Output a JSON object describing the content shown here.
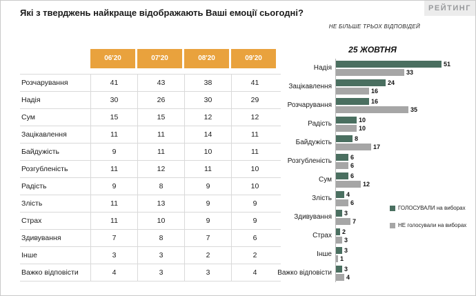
{
  "header": {
    "title": "Які з тверджень найкраще відображають Ваші емоції сьогодні?",
    "note": "НЕ БІЛЬШЕ ТРЬОХ ВІДПОВІДЕЙ",
    "logo": "РЕЙТИНГ"
  },
  "table": {
    "header_color": "#e9a23d",
    "columns": [
      "06'20",
      "07'20",
      "08'20",
      "09'20"
    ],
    "rows": [
      {
        "label": "Розчарування",
        "values": [
          41,
          43,
          38,
          41
        ]
      },
      {
        "label": "Надія",
        "values": [
          30,
          26,
          30,
          29
        ]
      },
      {
        "label": "Сум",
        "values": [
          15,
          15,
          12,
          12
        ]
      },
      {
        "label": "Зацікавлення",
        "values": [
          11,
          11,
          14,
          11
        ]
      },
      {
        "label": "Байдужість",
        "values": [
          9,
          11,
          10,
          11
        ]
      },
      {
        "label": "Розгубленість",
        "values": [
          11,
          12,
          11,
          10
        ]
      },
      {
        "label": "Радість",
        "values": [
          9,
          8,
          9,
          10
        ]
      },
      {
        "label": "Злість",
        "values": [
          11,
          13,
          9,
          9
        ]
      },
      {
        "label": "Страх",
        "values": [
          11,
          10,
          9,
          9
        ]
      },
      {
        "label": "Здивування",
        "values": [
          7,
          8,
          7,
          6
        ]
      },
      {
        "label": "Інше",
        "values": [
          3,
          3,
          2,
          2
        ]
      },
      {
        "label": "Важко відповісти",
        "values": [
          4,
          3,
          3,
          4
        ]
      }
    ]
  },
  "chart_data": {
    "type": "bar",
    "orientation": "horizontal",
    "title": "25 ЖОВТНЯ",
    "categories": [
      "Надія",
      "Зацікавлення",
      "Розчарування",
      "Радість",
      "Байдужість",
      "Розгубленість",
      "Сум",
      "Злість",
      "Здивування",
      "Страх",
      "Інше",
      "Важко відповісти"
    ],
    "series": [
      {
        "name": "ГОЛОСУВАЛИ на виборах",
        "color": "#4a6f60",
        "values": [
          51,
          24,
          16,
          10,
          8,
          6,
          6,
          4,
          3,
          2,
          3,
          3
        ]
      },
      {
        "name": "НЕ голосували на виборах",
        "color": "#a6a6a6",
        "values": [
          33,
          16,
          35,
          10,
          17,
          6,
          12,
          6,
          7,
          3,
          1,
          4
        ]
      }
    ],
    "xlim": [
      0,
      55
    ],
    "legend_position": "right-middle",
    "value_labels": true,
    "grid": false
  }
}
